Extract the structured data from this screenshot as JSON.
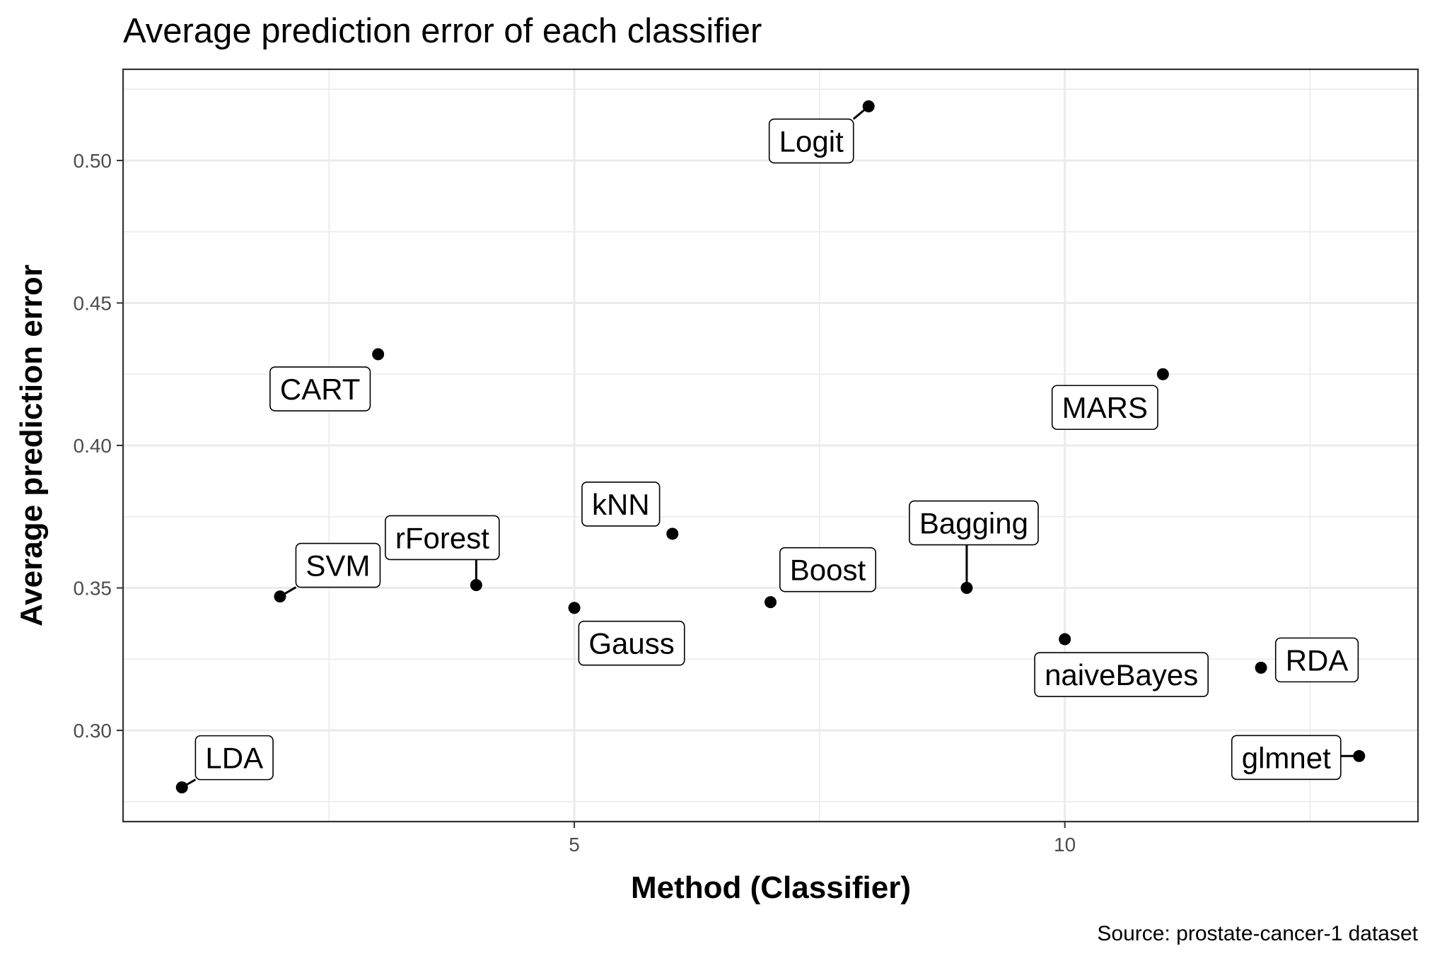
{
  "chart_data": {
    "type": "scatter",
    "title": "Average prediction error of each classifier",
    "xlabel": "Method (Classifier)",
    "ylabel": "Average prediction error",
    "caption": "Source: prostate-cancer-1 dataset",
    "xlim": [
      0.4,
      13.6
    ],
    "ylim": [
      0.268,
      0.532
    ],
    "x_ticks": [
      5,
      10
    ],
    "y_ticks": [
      0.3,
      0.35,
      0.4,
      0.45,
      0.5
    ],
    "x_tick_labels": [
      "5",
      "10"
    ],
    "y_tick_labels": [
      "0.30",
      "0.35",
      "0.40",
      "0.45",
      "0.50"
    ],
    "grid": true,
    "points": [
      {
        "x": 1,
        "y": 0.28,
        "label": "LDA"
      },
      {
        "x": 2,
        "y": 0.347,
        "label": "SVM"
      },
      {
        "x": 3,
        "y": 0.432,
        "label": "CART"
      },
      {
        "x": 4,
        "y": 0.351,
        "label": "rForest"
      },
      {
        "x": 5,
        "y": 0.343,
        "label": "Gauss"
      },
      {
        "x": 6,
        "y": 0.369,
        "label": "kNN"
      },
      {
        "x": 7,
        "y": 0.345,
        "label": "Boost"
      },
      {
        "x": 8,
        "y": 0.519,
        "label": "Logit"
      },
      {
        "x": 9,
        "y": 0.35,
        "label": "Bagging"
      },
      {
        "x": 10,
        "y": 0.332,
        "label": "naiveBayes"
      },
      {
        "x": 11,
        "y": 0.425,
        "label": "MARS"
      },
      {
        "x": 12,
        "y": 0.322,
        "label": "RDA"
      },
      {
        "x": 13,
        "y": 0.291,
        "label": "glmnet"
      }
    ]
  }
}
